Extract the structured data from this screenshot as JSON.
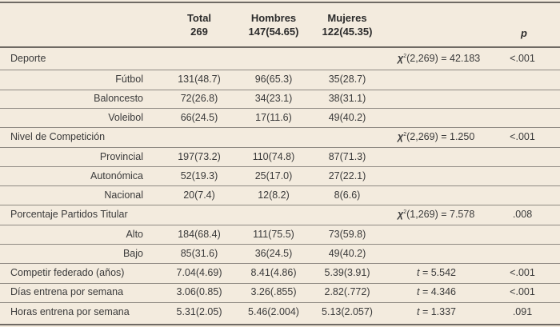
{
  "headers": {
    "total_label": "Total",
    "total_n": "269",
    "hombres_label": "Hombres",
    "hombres_n": "147(54.65)",
    "mujeres_label": "Mujeres",
    "mujeres_n": "122(45.35)",
    "p_label": "p"
  },
  "sections": {
    "deporte": {
      "label": "Deporte",
      "stat_symbol": "χ",
      "stat_sup": "2",
      "stat_rest": "(2,269) = 42.183",
      "p": "<.001",
      "rows": [
        {
          "label": "Fútbol",
          "total": "131(48.7)",
          "hombres": "96(65.3)",
          "mujeres": "35(28.7)"
        },
        {
          "label": "Baloncesto",
          "total": "72(26.8)",
          "hombres": "34(23.1)",
          "mujeres": "38(31.1)"
        },
        {
          "label": "Voleibol",
          "total": "66(24.5)",
          "hombres": "17(11.6)",
          "mujeres": "49(40.2)"
        }
      ]
    },
    "nivel": {
      "label": "Nivel de Competición",
      "stat_symbol": "χ",
      "stat_sup": "2",
      "stat_rest": "(2,269) = 1.250",
      "p": "<.001",
      "rows": [
        {
          "label": "Provincial",
          "total": "197(73.2)",
          "hombres": "110(74.8)",
          "mujeres": "87(71.3)"
        },
        {
          "label": "Autonómica",
          "total": "52(19.3)",
          "hombres": "25(17.0)",
          "mujeres": "27(22.1)"
        },
        {
          "label": "Nacional",
          "total": "20(7.4)",
          "hombres": "12(8.2)",
          "mujeres": "8(6.6)"
        }
      ]
    },
    "porcentaje": {
      "label": "Porcentaje Partidos Titular",
      "stat_symbol": "χ",
      "stat_sup": "2",
      "stat_rest": "(1,269) = 7.578",
      "p": ".008",
      "rows": [
        {
          "label": "Alto",
          "total": "184(68.4)",
          "hombres": "111(75.5)",
          "mujeres": "73(59.8)"
        },
        {
          "label": "Bajo",
          "total": "85(31.6)",
          "hombres": "36(24.5)",
          "mujeres": "49(40.2)"
        }
      ]
    }
  },
  "continuous": [
    {
      "label": "Competir federado (años)",
      "total": "7.04(4.69)",
      "hombres": "8.41(4.86)",
      "mujeres": "5.39(3.91)",
      "stat_symbol": "t",
      "stat_rest": " = 5.542",
      "p": "<.001"
    },
    {
      "label": "Días entrena por semana",
      "total": "3.06(0.85)",
      "hombres": "3.26(.855)",
      "mujeres": "2.82(.772)",
      "stat_symbol": "t",
      "stat_rest": " = 4.346",
      "p": "<.001"
    },
    {
      "label": "Horas entrena por semana",
      "total": "5.31(2.05)",
      "hombres": "5.46(2.004)",
      "mujeres": "5.13(2.057)",
      "stat_symbol": "t",
      "stat_rest": " = 1.337",
      "p": ".091"
    }
  ]
}
